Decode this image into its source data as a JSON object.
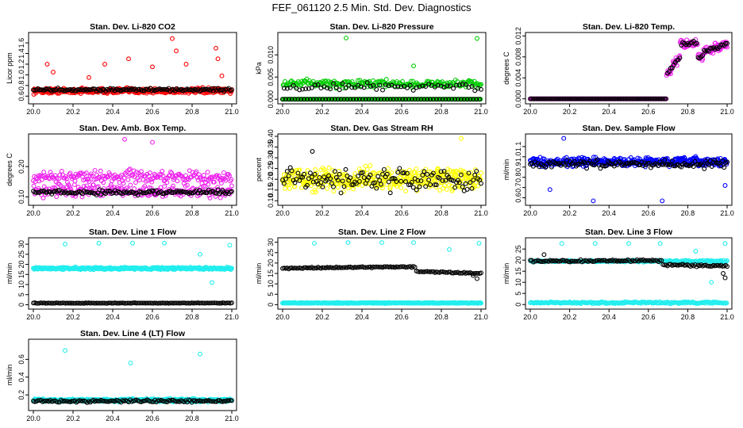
{
  "title": "FEF_061120  2.5 Min. Std. Dev. Diagnostics",
  "chart_data": [
    {
      "type": "scatter",
      "title": "Stan. Dev. Li-820 CO2",
      "ylabel": "Licor ppm",
      "xlim": [
        20.0,
        21.0
      ],
      "ylim": [
        0.5,
        1.75
      ],
      "xticks": [
        20.0,
        20.2,
        20.4,
        20.6,
        20.8,
        21.0
      ],
      "xtick_labels": [
        "20.0",
        "20.2",
        "20.4",
        "20.6",
        "20.8",
        "21.0"
      ],
      "yticks": [
        0.6,
        0.8,
        1.0,
        1.2,
        1.4,
        1.6
      ],
      "ytick_labels": [
        "0.6",
        "0.8",
        "1.0",
        "1.2",
        "1.4",
        "1.6"
      ],
      "series": [
        {
          "color": "#ff0000",
          "levels": [
            0.7
          ],
          "spread": 0.07,
          "outliers": [
            [
              20.07,
              1.2
            ],
            [
              20.1,
              1.05
            ],
            [
              20.28,
              0.95
            ],
            [
              20.36,
              1.2
            ],
            [
              20.48,
              1.3
            ],
            [
              20.6,
              1.15
            ],
            [
              20.7,
              1.68
            ],
            [
              20.72,
              1.45
            ],
            [
              20.77,
              1.2
            ],
            [
              20.92,
              1.5
            ],
            [
              20.93,
              1.3
            ],
            [
              20.95,
              0.98
            ]
          ]
        },
        {
          "color": "#000000",
          "levels": [
            0.72
          ],
          "spread": 0.04,
          "outliers": []
        }
      ]
    },
    {
      "type": "scatter",
      "title": "Stan. Dev. Li-820 Pressure",
      "ylabel": "kPa",
      "xlim": [
        20.0,
        21.0
      ],
      "ylim": [
        -0.0005,
        0.0145
      ],
      "xticks": [
        20.0,
        20.2,
        20.4,
        20.6,
        20.8,
        21.0
      ],
      "xtick_labels": [
        "20.0",
        "20.2",
        "20.4",
        "20.6",
        "20.8",
        "21.0"
      ],
      "yticks": [
        0.0,
        0.005,
        0.01
      ],
      "ytick_labels": [
        "0.000",
        "0.005",
        "0.010"
      ],
      "series": [
        {
          "color": "#00cc00",
          "levels": [
            0.0,
            0.0035
          ],
          "spread": 0.0013,
          "outliers": [
            [
              20.32,
              0.0138
            ],
            [
              20.66,
              0.0075
            ],
            [
              20.98,
              0.0137
            ]
          ]
        },
        {
          "color": "#000000",
          "levels": [
            0.0,
            0.0028
          ],
          "spread": 0.0012,
          "outliers": []
        }
      ]
    },
    {
      "type": "scatter",
      "title": "Stan. Dev. Li-820 Temp.",
      "ylabel": "degrees C",
      "xlim": [
        20.0,
        21.0
      ],
      "ylim": [
        -0.0005,
        0.0122
      ],
      "xticks": [
        20.0,
        20.2,
        20.4,
        20.6,
        20.8,
        21.0
      ],
      "xtick_labels": [
        "20.0",
        "20.2",
        "20.4",
        "20.6",
        "20.8",
        "21.0"
      ],
      "yticks": [
        0.0,
        0.004,
        0.008,
        0.012
      ],
      "ytick_labels": [
        "0.000",
        "0.004",
        "0.008",
        "0.012"
      ],
      "series": [
        {
          "color": "#ee22ee",
          "curve": "temp",
          "spread": 0.0012,
          "outliers": []
        },
        {
          "color": "#000000",
          "curve": "temp",
          "spread": 0.0006,
          "outliers": []
        }
      ]
    },
    {
      "type": "scatter",
      "title": "Stan. Dev. Amb. Box Temp.",
      "ylabel": "degrees C",
      "xlim": [
        20.0,
        21.0
      ],
      "ylim": [
        0.08,
        0.3
      ],
      "xticks": [
        20.0,
        20.2,
        20.4,
        20.6,
        20.8,
        21.0
      ],
      "xtick_labels": [
        "20.0",
        "20.2",
        "20.4",
        "20.6",
        "20.8",
        "21.0"
      ],
      "yticks": [
        0.1,
        0.2
      ],
      "ytick_labels": [
        "0.10",
        "0.20"
      ],
      "series": [
        {
          "color": "#ee22ee",
          "levels": [
            0.165,
            0.12
          ],
          "spread": 0.03,
          "outliers": [
            [
              20.46,
              0.29
            ],
            [
              20.6,
              0.28
            ]
          ]
        },
        {
          "color": "#000000",
          "levels": [
            0.115
          ],
          "spread": 0.012,
          "outliers": []
        }
      ]
    },
    {
      "type": "scatter",
      "title": "Stan. Dev. Gas Stream RH",
      "ylabel": "percent",
      "xlim": [
        20.0,
        21.0
      ],
      "ylim": [
        0.09,
        0.4
      ],
      "xticks": [
        20.0,
        20.2,
        20.4,
        20.6,
        20.8,
        21.0
      ],
      "xtick_labels": [
        "20.0",
        "20.2",
        "20.4",
        "20.6",
        "20.8",
        "21.0"
      ],
      "yticks": [
        0.1,
        0.15,
        0.2,
        0.25,
        0.3,
        0.35,
        0.4
      ],
      "ytick_labels": [
        "0.10",
        "0.15",
        "0.20",
        "0.25",
        "0.30",
        "0.35",
        "0.40"
      ],
      "series": [
        {
          "color": "#ffff00",
          "levels": [
            0.2
          ],
          "spread": 0.07,
          "outliers": [
            [
              20.9,
              0.39
            ]
          ]
        },
        {
          "color": "#000000",
          "levels": [
            0.2
          ],
          "spread": 0.07,
          "outliers": [
            [
              20.15,
              0.33
            ]
          ]
        }
      ]
    },
    {
      "type": "scatter",
      "title": "Stan. Dev. Sample Flow",
      "ylabel": "ml/min",
      "xlim": [
        20.0,
        21.0
      ],
      "ylim": [
        0.55,
        1.2
      ],
      "xticks": [
        20.0,
        20.2,
        20.4,
        20.6,
        20.8,
        21.0
      ],
      "xtick_labels": [
        "20.0",
        "20.2",
        "20.4",
        "20.6",
        "20.8",
        "21.0"
      ],
      "yticks": [
        0.6,
        0.7,
        0.8,
        0.9,
        1.0,
        1.1
      ],
      "ytick_labels": [
        "0.6",
        "0.7",
        "0.8",
        "0.9",
        "1.0",
        "1.1"
      ],
      "series": [
        {
          "color": "#0000ff",
          "levels": [
            0.95
          ],
          "spread": 0.06,
          "outliers": [
            [
              20.1,
              0.68
            ],
            [
              20.17,
              1.18
            ],
            [
              20.32,
              0.57
            ],
            [
              20.67,
              0.57
            ],
            [
              20.99,
              0.72
            ]
          ]
        },
        {
          "color": "#000000",
          "levels": [
            0.93
          ],
          "spread": 0.05,
          "outliers": []
        }
      ]
    },
    {
      "type": "scatter",
      "title": "Stan. Dev. Line 1 Flow",
      "ylabel": "ml/min",
      "xlim": [
        20.0,
        21.0
      ],
      "ylim": [
        -1,
        32
      ],
      "xticks": [
        20.0,
        20.2,
        20.4,
        20.6,
        20.8,
        21.0
      ],
      "xtick_labels": [
        "20.0",
        "20.2",
        "20.4",
        "20.6",
        "20.8",
        "21.0"
      ],
      "yticks": [
        0,
        5,
        10,
        15,
        20,
        25,
        30
      ],
      "ytick_labels": [
        "0",
        "5",
        "10",
        "15",
        "20",
        "25",
        "30"
      ],
      "series": [
        {
          "color": "#22eeee",
          "levels": [
            18
          ],
          "spread": 0.8,
          "outliers": [
            [
              20.16,
              30
            ],
            [
              20.33,
              30.5
            ],
            [
              20.5,
              30.5
            ],
            [
              20.66,
              30.5
            ],
            [
              20.84,
              25
            ],
            [
              20.9,
              11
            ],
            [
              20.99,
              29.5
            ]
          ]
        },
        {
          "color": "#000000",
          "levels": [
            0.8
          ],
          "spread": 0.2,
          "outliers": []
        }
      ]
    },
    {
      "type": "scatter",
      "title": "Stan. Dev. Line 2 Flow",
      "ylabel": "ml/min",
      "xlim": [
        20.0,
        21.0
      ],
      "ylim": [
        -1,
        31
      ],
      "xticks": [
        20.0,
        20.2,
        20.4,
        20.6,
        20.8,
        21.0
      ],
      "xtick_labels": [
        "20.0",
        "20.2",
        "20.4",
        "20.6",
        "20.8",
        "21.0"
      ],
      "yticks": [
        0,
        5,
        10,
        15,
        20,
        25,
        30
      ],
      "ytick_labels": [
        "0",
        "5",
        "10",
        "15",
        "20",
        "25",
        "30"
      ],
      "series": [
        {
          "color": "#22eeee",
          "levels": [
            0.8
          ],
          "spread": 0.3,
          "outliers": [
            [
              20.16,
              29.5
            ],
            [
              20.33,
              29.8
            ],
            [
              20.5,
              29.8
            ],
            [
              20.66,
              29.8
            ],
            [
              20.84,
              26.5
            ],
            [
              20.99,
              29.5
            ]
          ]
        },
        {
          "color": "#000000",
          "curve": "line2",
          "spread": 0.5,
          "outliers": [
            [
              20.98,
              12.5
            ],
            [
              20.96,
              14
            ]
          ]
        }
      ]
    },
    {
      "type": "scatter",
      "title": "Stan. Dev. Line 3 Flow",
      "ylabel": "ml/min",
      "xlim": [
        20.0,
        21.0
      ],
      "ylim": [
        -1,
        29
      ],
      "xticks": [
        20.0,
        20.2,
        20.4,
        20.6,
        20.8,
        21.0
      ],
      "xtick_labels": [
        "20.0",
        "20.2",
        "20.4",
        "20.6",
        "20.8",
        "21.0"
      ],
      "yticks": [
        0,
        5,
        10,
        15,
        20,
        25
      ],
      "ytick_labels": [
        "0",
        "5",
        "10",
        "15",
        "20",
        "25"
      ],
      "series": [
        {
          "color": "#22eeee",
          "levels": [
            0.8,
            19.5
          ],
          "spread": 0.6,
          "outliers": [
            [
              20.16,
              27.5
            ],
            [
              20.33,
              27.5
            ],
            [
              20.5,
              27.5
            ],
            [
              20.66,
              27.5
            ],
            [
              20.84,
              24
            ],
            [
              20.99,
              27.5
            ],
            [
              20.92,
              10
            ]
          ]
        },
        {
          "color": "#000000",
          "curve": "line3",
          "spread": 0.7,
          "outliers": [
            [
              20.99,
              12
            ],
            [
              20.98,
              14
            ],
            [
              20.07,
              22.5
            ]
          ]
        }
      ]
    },
    {
      "type": "scatter",
      "title": "Stan. Dev. Line 4 (LT) Flow",
      "ylabel": "ml/min",
      "xlim": [
        20.0,
        21.0
      ],
      "ylim": [
        0.05,
        0.8
      ],
      "xticks": [
        20.0,
        20.2,
        20.4,
        20.6,
        20.8,
        21.0
      ],
      "xtick_labels": [
        "20.0",
        "20.2",
        "20.4",
        "20.6",
        "20.8",
        "21.0"
      ],
      "yticks": [
        0.2,
        0.4,
        0.6
      ],
      "ytick_labels": [
        "0.2",
        "0.4",
        "0.6"
      ],
      "series": [
        {
          "color": "#22eeee",
          "levels": [
            0.14
          ],
          "spread": 0.025,
          "outliers": [
            [
              20.16,
              0.7
            ],
            [
              20.49,
              0.56
            ],
            [
              20.84,
              0.66
            ]
          ]
        },
        {
          "color": "#000000",
          "levels": [
            0.13
          ],
          "spread": 0.02,
          "outliers": []
        }
      ]
    }
  ]
}
